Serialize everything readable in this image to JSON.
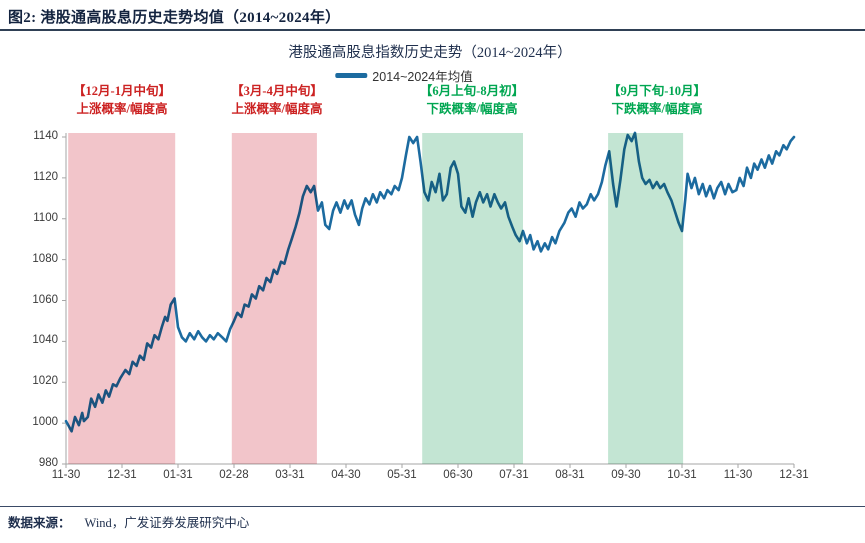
{
  "figure": {
    "title": "图2:  港股通高股息历史走势均值（2014~2024年）"
  },
  "chart": {
    "title": "港股通高股息指数历史走势（2014~2024年）",
    "legend_label": "2014~2024年均值"
  },
  "annotations": {
    "rise1": {
      "line1": "【12月-1月中旬】",
      "line2": "上涨概率/幅度高"
    },
    "rise2": {
      "line1": "【3月-4月中旬】",
      "line2": "上涨概率/幅度高"
    },
    "fall1": {
      "line1": "【6月上旬-8月初】",
      "line2": "下跌概率/幅度高"
    },
    "fall2": {
      "line1": "【9月下旬-10月】",
      "line2": "下跌概率/幅度高"
    }
  },
  "footer": {
    "prefix": "数据来源：",
    "source": "Wind，广发证券发展研究中心"
  },
  "colors": {
    "line": "#1c6ba0",
    "band_rise": "#f2c5ca",
    "band_fall": "#c3e5d3",
    "rise_text": "#cc2222",
    "fall_text": "#00a651",
    "axis": "#a6a6a6",
    "rule": "#2f4055",
    "title_text": "#13233f"
  },
  "chart_data": {
    "type": "line",
    "title": "港股通高股息指数历史走势（2014~2024年）",
    "series_name": "2014~2024年均值",
    "xlabel": "",
    "ylabel": "",
    "ylim": [
      980,
      1140
    ],
    "y_ticks": [
      980,
      1000,
      1020,
      1040,
      1060,
      1080,
      1100,
      1120,
      1140
    ],
    "x_tick_labels": [
      "11-30",
      "12-31",
      "01-31",
      "02-28",
      "03-31",
      "04-30",
      "05-31",
      "06-30",
      "07-31",
      "08-31",
      "09-30",
      "10-31",
      "11-30",
      "12-31"
    ],
    "x_unit": "tick-units: 0 = 11-30 start, 13 = final 12-31; one unit per month tick",
    "grid": false,
    "legend_position": "top-center",
    "shaded_regions": [
      {
        "label": "12月-1月中旬",
        "effect": "rise",
        "t0": 0.04,
        "t1": 1.95
      },
      {
        "label": "3月-4月中旬",
        "effect": "rise",
        "t0": 2.96,
        "t1": 4.48
      },
      {
        "label": "6月上旬-8月初",
        "effect": "fall",
        "t0": 6.36,
        "t1": 8.16
      },
      {
        "label": "9月下旬-10月",
        "effect": "fall",
        "t0": 9.68,
        "t1": 11.02
      }
    ],
    "points": [
      [
        0,
        1001
      ],
      [
        0.06,
        998
      ],
      [
        0.1,
        996
      ],
      [
        0.16,
        1003
      ],
      [
        0.23,
        999
      ],
      [
        0.29,
        1005
      ],
      [
        0.32,
        1001
      ],
      [
        0.39,
        1003
      ],
      [
        0.45,
        1012
      ],
      [
        0.52,
        1008
      ],
      [
        0.58,
        1014
      ],
      [
        0.65,
        1010
      ],
      [
        0.71,
        1016
      ],
      [
        0.77,
        1013
      ],
      [
        0.84,
        1019
      ],
      [
        0.9,
        1018
      ],
      [
        0.97,
        1022
      ],
      [
        1.06,
        1026
      ],
      [
        1.13,
        1024
      ],
      [
        1.19,
        1030
      ],
      [
        1.26,
        1028
      ],
      [
        1.32,
        1033
      ],
      [
        1.39,
        1031
      ],
      [
        1.45,
        1039
      ],
      [
        1.52,
        1037
      ],
      [
        1.58,
        1043
      ],
      [
        1.65,
        1041
      ],
      [
        1.71,
        1047
      ],
      [
        1.77,
        1052
      ],
      [
        1.81,
        1050
      ],
      [
        1.87,
        1058
      ],
      [
        1.94,
        1061
      ],
      [
        2,
        1047
      ],
      [
        2.07,
        1042
      ],
      [
        2.14,
        1040
      ],
      [
        2.21,
        1044
      ],
      [
        2.29,
        1041
      ],
      [
        2.36,
        1045
      ],
      [
        2.43,
        1042
      ],
      [
        2.5,
        1040
      ],
      [
        2.57,
        1043
      ],
      [
        2.64,
        1041
      ],
      [
        2.71,
        1044
      ],
      [
        2.79,
        1042
      ],
      [
        2.86,
        1040
      ],
      [
        2.93,
        1046
      ],
      [
        3,
        1050
      ],
      [
        3.06,
        1054
      ],
      [
        3.13,
        1052
      ],
      [
        3.19,
        1058
      ],
      [
        3.26,
        1057
      ],
      [
        3.32,
        1063
      ],
      [
        3.39,
        1061
      ],
      [
        3.45,
        1067
      ],
      [
        3.52,
        1065
      ],
      [
        3.58,
        1071
      ],
      [
        3.65,
        1069
      ],
      [
        3.71,
        1075
      ],
      [
        3.77,
        1073
      ],
      [
        3.84,
        1079
      ],
      [
        3.9,
        1078
      ],
      [
        3.97,
        1085
      ],
      [
        4.03,
        1090
      ],
      [
        4.1,
        1096
      ],
      [
        4.17,
        1103
      ],
      [
        4.23,
        1111
      ],
      [
        4.3,
        1116
      ],
      [
        4.37,
        1113
      ],
      [
        4.43,
        1116
      ],
      [
        4.5,
        1104
      ],
      [
        4.57,
        1108
      ],
      [
        4.63,
        1097
      ],
      [
        4.7,
        1095
      ],
      [
        4.77,
        1104
      ],
      [
        4.83,
        1108
      ],
      [
        4.9,
        1103
      ],
      [
        4.97,
        1109
      ],
      [
        5.03,
        1105
      ],
      [
        5.1,
        1109
      ],
      [
        5.16,
        1102
      ],
      [
        5.23,
        1097
      ],
      [
        5.29,
        1105
      ],
      [
        5.35,
        1110
      ],
      [
        5.42,
        1107
      ],
      [
        5.48,
        1112
      ],
      [
        5.55,
        1108
      ],
      [
        5.61,
        1113
      ],
      [
        5.68,
        1110
      ],
      [
        5.74,
        1114
      ],
      [
        5.81,
        1112
      ],
      [
        5.87,
        1116
      ],
      [
        5.94,
        1114
      ],
      [
        6,
        1120
      ],
      [
        6.07,
        1131
      ],
      [
        6.13,
        1140
      ],
      [
        6.2,
        1137
      ],
      [
        6.27,
        1140
      ],
      [
        6.33,
        1128
      ],
      [
        6.4,
        1113
      ],
      [
        6.47,
        1109
      ],
      [
        6.53,
        1118
      ],
      [
        6.6,
        1113
      ],
      [
        6.67,
        1122
      ],
      [
        6.73,
        1109
      ],
      [
        6.8,
        1112
      ],
      [
        6.87,
        1125
      ],
      [
        6.93,
        1128
      ],
      [
        7,
        1122
      ],
      [
        7.06,
        1106
      ],
      [
        7.13,
        1103
      ],
      [
        7.19,
        1110
      ],
      [
        7.26,
        1101
      ],
      [
        7.32,
        1108
      ],
      [
        7.39,
        1113
      ],
      [
        7.45,
        1108
      ],
      [
        7.52,
        1112
      ],
      [
        7.58,
        1106
      ],
      [
        7.65,
        1112
      ],
      [
        7.71,
        1108
      ],
      [
        7.77,
        1105
      ],
      [
        7.84,
        1108
      ],
      [
        7.9,
        1101
      ],
      [
        7.97,
        1096
      ],
      [
        8.03,
        1092
      ],
      [
        8.1,
        1089
      ],
      [
        8.16,
        1094
      ],
      [
        8.23,
        1088
      ],
      [
        8.29,
        1092
      ],
      [
        8.35,
        1085
      ],
      [
        8.42,
        1089
      ],
      [
        8.48,
        1084
      ],
      [
        8.55,
        1088
      ],
      [
        8.61,
        1085
      ],
      [
        8.68,
        1091
      ],
      [
        8.74,
        1088
      ],
      [
        8.81,
        1094
      ],
      [
        8.9,
        1098
      ],
      [
        8.97,
        1103
      ],
      [
        9.03,
        1105
      ],
      [
        9.1,
        1101
      ],
      [
        9.17,
        1108
      ],
      [
        9.23,
        1105
      ],
      [
        9.3,
        1107
      ],
      [
        9.37,
        1112
      ],
      [
        9.43,
        1109
      ],
      [
        9.5,
        1112
      ],
      [
        9.57,
        1118
      ],
      [
        9.63,
        1126
      ],
      [
        9.7,
        1133
      ],
      [
        9.77,
        1117
      ],
      [
        9.83,
        1106
      ],
      [
        9.9,
        1119
      ],
      [
        9.97,
        1134
      ],
      [
        10.03,
        1141
      ],
      [
        10.1,
        1138
      ],
      [
        10.16,
        1142
      ],
      [
        10.23,
        1128
      ],
      [
        10.29,
        1120
      ],
      [
        10.35,
        1117
      ],
      [
        10.42,
        1119
      ],
      [
        10.48,
        1115
      ],
      [
        10.55,
        1118
      ],
      [
        10.61,
        1115
      ],
      [
        10.68,
        1117
      ],
      [
        10.74,
        1113
      ],
      [
        10.81,
        1109
      ],
      [
        10.87,
        1104
      ],
      [
        10.94,
        1098
      ],
      [
        11,
        1094
      ],
      [
        11.06,
        1110
      ],
      [
        11.1,
        1122
      ],
      [
        11.17,
        1115
      ],
      [
        11.23,
        1120
      ],
      [
        11.3,
        1112
      ],
      [
        11.37,
        1117
      ],
      [
        11.43,
        1111
      ],
      [
        11.5,
        1116
      ],
      [
        11.57,
        1110
      ],
      [
        11.63,
        1115
      ],
      [
        11.7,
        1118
      ],
      [
        11.77,
        1112
      ],
      [
        11.83,
        1117
      ],
      [
        11.9,
        1113
      ],
      [
        11.97,
        1114
      ],
      [
        12.03,
        1120
      ],
      [
        12.1,
        1116
      ],
      [
        12.16,
        1125
      ],
      [
        12.23,
        1120
      ],
      [
        12.29,
        1127
      ],
      [
        12.35,
        1124
      ],
      [
        12.42,
        1129
      ],
      [
        12.48,
        1125
      ],
      [
        12.55,
        1131
      ],
      [
        12.61,
        1127
      ],
      [
        12.68,
        1133
      ],
      [
        12.74,
        1131
      ],
      [
        12.81,
        1136
      ],
      [
        12.87,
        1134
      ],
      [
        12.94,
        1138
      ],
      [
        13,
        1140
      ]
    ]
  }
}
